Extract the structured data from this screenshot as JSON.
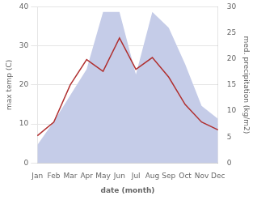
{
  "chart_data": {
    "type": "line",
    "categories": [
      "Jan",
      "Feb",
      "Mar",
      "Apr",
      "May",
      "Jun",
      "Jul",
      "Aug",
      "Sep",
      "Oct",
      "Nov",
      "Dec"
    ],
    "series": [
      {
        "type": "area",
        "color": "#c5cce8",
        "axis": "y2",
        "values": [
          3.5,
          8.0,
          13.0,
          18.0,
          29.0,
          29.0,
          17.0,
          29.0,
          26.0,
          19.0,
          11.0,
          8.5
        ]
      },
      {
        "type": "line",
        "color": "#b03030",
        "values": [
          7.0,
          10.5,
          20.0,
          26.5,
          23.5,
          32.0,
          24.0,
          27.0,
          22.0,
          15.0,
          10.5,
          8.5
        ]
      }
    ],
    "xlabel": "date (month)",
    "ylabel": "max temp (C)",
    "y2label": "med. precipitation (kg/m2)",
    "ylim": [
      0,
      40
    ],
    "yticks": [
      0,
      10,
      20,
      30,
      40
    ],
    "y2lim": [
      0,
      30
    ],
    "y2ticks": [
      0,
      5,
      10,
      15,
      20,
      25,
      30
    ],
    "grid": true
  }
}
